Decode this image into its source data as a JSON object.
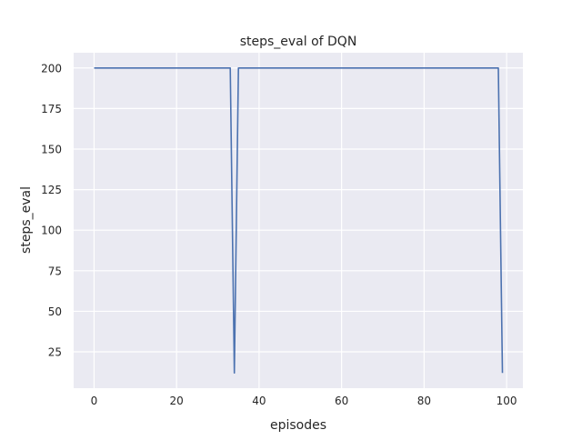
{
  "chart_data": {
    "type": "line",
    "title": "steps_eval of DQN",
    "xlabel": "episodes",
    "ylabel": "steps_eval",
    "xlim": [
      -4.95,
      103.95
    ],
    "ylim": [
      2.6,
      209.4
    ],
    "xticks": [
      0,
      20,
      40,
      60,
      80,
      100
    ],
    "yticks": [
      25,
      50,
      75,
      100,
      125,
      150,
      175,
      200
    ],
    "grid": true,
    "colors": {
      "background": "#eaeaf2",
      "grid": "#ffffff",
      "line": "#4c72b0"
    },
    "series": [
      {
        "x": [
          0,
          1,
          2,
          3,
          4,
          5,
          6,
          7,
          8,
          9,
          10,
          11,
          12,
          13,
          14,
          15,
          16,
          17,
          18,
          19,
          20,
          21,
          22,
          23,
          24,
          25,
          26,
          27,
          28,
          29,
          30,
          31,
          32,
          33,
          34,
          35,
          36,
          37,
          38,
          39,
          40,
          41,
          42,
          43,
          44,
          45,
          46,
          47,
          48,
          49,
          50,
          51,
          52,
          53,
          54,
          55,
          56,
          57,
          58,
          59,
          60,
          61,
          62,
          63,
          64,
          65,
          66,
          67,
          68,
          69,
          70,
          71,
          72,
          73,
          74,
          75,
          76,
          77,
          78,
          79,
          80,
          81,
          82,
          83,
          84,
          85,
          86,
          87,
          88,
          89,
          90,
          91,
          92,
          93,
          94,
          95,
          96,
          97,
          98,
          99
        ],
        "y": [
          200,
          200,
          200,
          200,
          200,
          200,
          200,
          200,
          200,
          200,
          200,
          200,
          200,
          200,
          200,
          200,
          200,
          200,
          200,
          200,
          200,
          200,
          200,
          200,
          200,
          200,
          200,
          200,
          200,
          200,
          200,
          200,
          200,
          200,
          12,
          200,
          200,
          200,
          200,
          200,
          200,
          200,
          200,
          200,
          200,
          200,
          200,
          200,
          200,
          200,
          200,
          200,
          200,
          200,
          200,
          200,
          200,
          200,
          200,
          200,
          200,
          200,
          200,
          200,
          200,
          200,
          200,
          200,
          200,
          200,
          200,
          200,
          200,
          200,
          200,
          200,
          200,
          200,
          200,
          200,
          200,
          200,
          200,
          200,
          200,
          200,
          200,
          200,
          200,
          200,
          200,
          200,
          200,
          200,
          200,
          200,
          200,
          200,
          200,
          12
        ]
      }
    ]
  }
}
